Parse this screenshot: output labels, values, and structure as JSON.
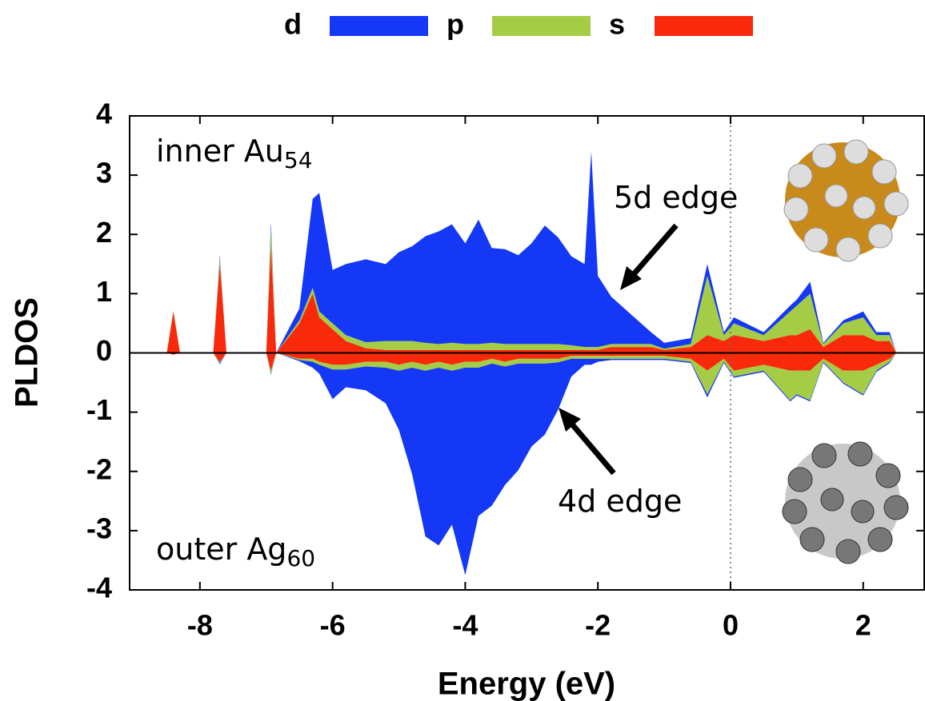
{
  "chart_data": {
    "type": "area",
    "xlabel": "Energy (eV)",
    "ylabel": "PLDOS",
    "xlim": [
      -9.06,
      2.92
    ],
    "ylim": [
      -4,
      4
    ],
    "xticks": [
      -8,
      -6,
      -4,
      -2,
      0,
      2
    ],
    "yticks": [
      -4,
      -3,
      -2,
      -1,
      0,
      1,
      2,
      3,
      4
    ],
    "vline": 0,
    "stacked": true,
    "annotations": {
      "inner": "inner Au",
      "inner_sub": "54",
      "outer": "outer Ag",
      "outer_sub": "60",
      "edge5d": "5d edge",
      "edge4d": "4d edge"
    },
    "x": [
      -8.5,
      -8.4,
      -8.3,
      -7.8,
      -7.7,
      -7.6,
      -7.0,
      -6.93,
      -6.85,
      -6.5,
      -6.3,
      -6.2,
      -6.0,
      -5.8,
      -5.5,
      -5.2,
      -5.0,
      -4.8,
      -4.6,
      -4.4,
      -4.2,
      -4.0,
      -3.8,
      -3.6,
      -3.4,
      -3.2,
      -3.0,
      -2.8,
      -2.6,
      -2.4,
      -2.2,
      -2.1,
      -2.0,
      -1.8,
      -1.5,
      -1.2,
      -1.0,
      -0.6,
      -0.35,
      -0.1,
      0.05,
      0.5,
      0.9,
      1.0,
      1.2,
      1.4,
      1.7,
      2.0,
      2.2,
      2.4,
      2.5
    ],
    "series": [
      {
        "name": "d",
        "color": "#1438f5",
        "inner": [
          0,
          0,
          0,
          0,
          0.05,
          0,
          0,
          0.1,
          0,
          0.2,
          1.5,
          2.0,
          0.9,
          1.2,
          1.4,
          1.3,
          1.5,
          1.6,
          1.8,
          1.9,
          2.0,
          1.7,
          2.1,
          1.6,
          1.6,
          1.5,
          1.7,
          2.0,
          1.8,
          1.5,
          1.4,
          3.3,
          1.2,
          0.8,
          0.5,
          0.2,
          0.1,
          0.1,
          0.2,
          0.05,
          0.1,
          0.05,
          0.1,
          0.1,
          0.2,
          0.02,
          0.05,
          0.1,
          0.05,
          0.05,
          0
        ],
        "outer": [
          0,
          0,
          0,
          0,
          -0.02,
          0,
          0,
          -0.02,
          0,
          -0.02,
          -0.1,
          -0.15,
          -0.5,
          -0.3,
          -0.4,
          -0.6,
          -1.0,
          -1.8,
          -2.8,
          -3.0,
          -2.6,
          -3.5,
          -2.5,
          -2.4,
          -2.0,
          -1.8,
          -1.4,
          -1.2,
          -0.8,
          -0.3,
          -0.1,
          -0.1,
          -0.05,
          -0.02,
          -0.02,
          -0.02,
          -0.02,
          -0.02,
          -0.05,
          -0.02,
          -0.02,
          -0.02,
          -0.02,
          -0.02,
          -0.02,
          -0.02,
          -0.02,
          -0.02,
          -0.02,
          -0.02,
          0
        ]
      },
      {
        "name": "p",
        "color": "#a4cc44",
        "inner": [
          0,
          0.02,
          0,
          0,
          0.1,
          0,
          0,
          0.3,
          0,
          0.05,
          0.1,
          0.1,
          0.1,
          0.1,
          0.1,
          0.15,
          0.15,
          0.15,
          0.12,
          0.1,
          0.12,
          0.1,
          0.1,
          0.12,
          0.1,
          0.1,
          0.1,
          0.1,
          0.1,
          0.08,
          0.05,
          0.05,
          0.05,
          0.05,
          0.05,
          0.05,
          0.02,
          0.05,
          1.0,
          0.1,
          0.2,
          0.1,
          0.4,
          0.5,
          0.6,
          0.05,
          0.2,
          0.3,
          0.1,
          0.1,
          0
        ],
        "outer": [
          0,
          0,
          0,
          0,
          -0.02,
          0,
          0,
          -0.05,
          0,
          -0.02,
          -0.05,
          -0.05,
          -0.08,
          -0.08,
          -0.08,
          -0.1,
          -0.1,
          -0.1,
          -0.1,
          -0.1,
          -0.1,
          -0.1,
          -0.1,
          -0.08,
          -0.08,
          -0.08,
          -0.08,
          -0.08,
          -0.06,
          -0.05,
          -0.05,
          -0.05,
          -0.05,
          -0.05,
          -0.05,
          -0.05,
          -0.05,
          -0.05,
          -0.4,
          -0.05,
          -0.1,
          -0.1,
          -0.5,
          -0.4,
          -0.5,
          -0.05,
          -0.2,
          -0.4,
          -0.1,
          -0.05,
          0
        ]
      },
      {
        "name": "s",
        "color": "#f92a0c",
        "inner": [
          0,
          0.7,
          0,
          0,
          1.5,
          0,
          0,
          1.8,
          0,
          0.5,
          1.0,
          0.6,
          0.4,
          0.2,
          0.08,
          0.05,
          0.05,
          0.05,
          0.05,
          0.05,
          0.05,
          0.05,
          0.05,
          0.05,
          0.05,
          0.05,
          0.05,
          0.05,
          0.05,
          0.05,
          0.05,
          0.05,
          0.05,
          0.1,
          0.1,
          0.1,
          0.05,
          0.1,
          0.3,
          0.2,
          0.3,
          0.2,
          0.3,
          0.3,
          0.4,
          0.1,
          0.3,
          0.3,
          0.2,
          0.2,
          0
        ],
        "outer": [
          0,
          -0.03,
          0,
          0,
          -0.15,
          0,
          0,
          -0.3,
          0,
          -0.1,
          -0.1,
          -0.15,
          -0.2,
          -0.2,
          -0.15,
          -0.15,
          -0.2,
          -0.15,
          -0.2,
          -0.15,
          -0.2,
          -0.15,
          -0.15,
          -0.1,
          -0.15,
          -0.1,
          -0.1,
          -0.1,
          -0.1,
          -0.05,
          -0.05,
          -0.05,
          -0.05,
          -0.05,
          -0.05,
          -0.05,
          -0.05,
          -0.1,
          -0.3,
          -0.1,
          -0.3,
          -0.2,
          -0.3,
          -0.3,
          -0.3,
          -0.1,
          -0.3,
          -0.3,
          -0.2,
          -0.1,
          0
        ]
      }
    ]
  }
}
